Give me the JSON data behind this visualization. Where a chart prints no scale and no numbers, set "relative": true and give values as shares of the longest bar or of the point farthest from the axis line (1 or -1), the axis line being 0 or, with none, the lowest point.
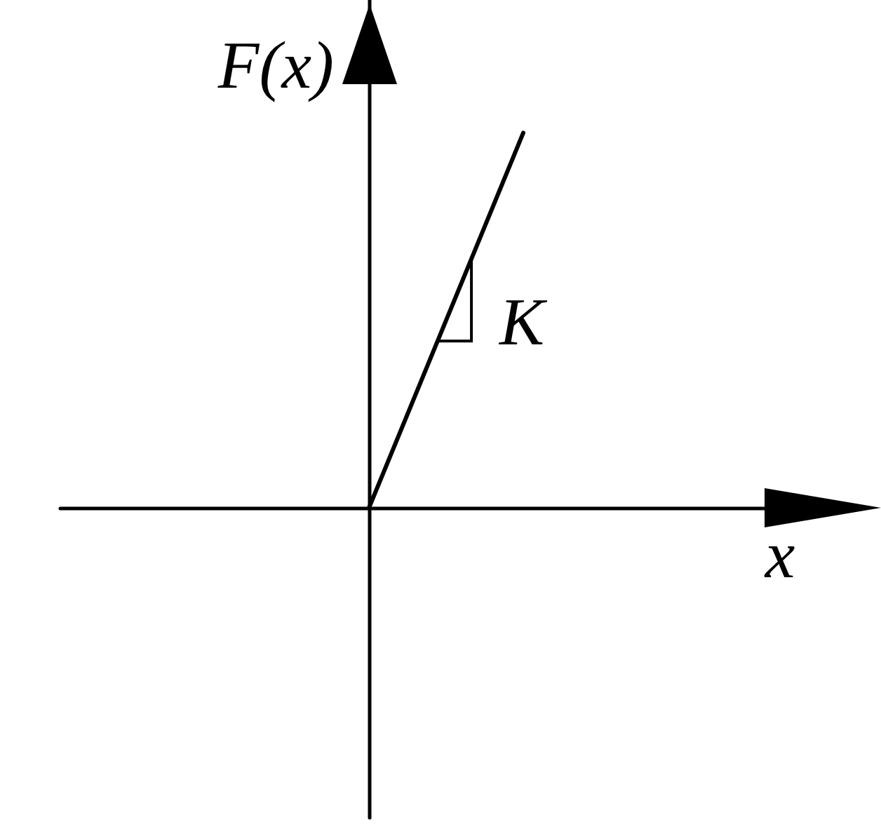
{
  "chart_data": {
    "type": "line",
    "relative": true,
    "xlabel": "x",
    "ylabel": "F(x)",
    "categories": [
      null,
      null,
      null,
      null,
      null,
      null
    ],
    "values": [
      null,
      null,
      0,
      1,
      null,
      null
    ],
    "color": "#000000",
    "marker": "none",
    "line_style": "solid",
    "annotations": [
      "K"
    ]
  }
}
